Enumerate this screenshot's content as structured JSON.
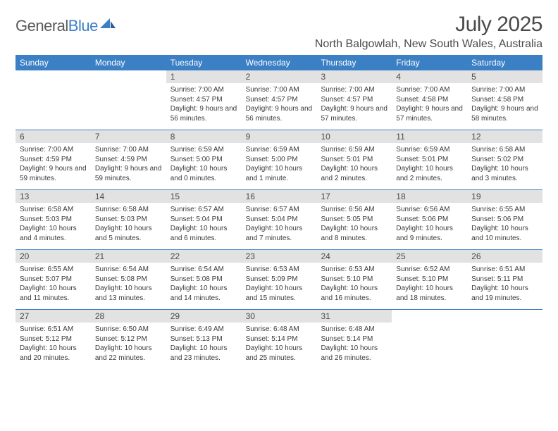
{
  "brand": {
    "name_part1": "General",
    "name_part2": "Blue",
    "colors": {
      "gray": "#5a5a5a",
      "blue": "#3b7fc4"
    }
  },
  "header": {
    "month_title": "July 2025",
    "location": "North Balgowlah, New South Wales, Australia"
  },
  "style": {
    "header_bg": "#3b7fc4",
    "daynum_bg": "#e2e2e2",
    "rule_color": "#3b7fc4",
    "page_bg": "#ffffff",
    "weekday_fontsize": 12,
    "daynum_fontsize": 12,
    "body_fontsize": 10,
    "title_fontsize": 30,
    "location_fontsize": 16
  },
  "weekdays": [
    "Sunday",
    "Monday",
    "Tuesday",
    "Wednesday",
    "Thursday",
    "Friday",
    "Saturday"
  ],
  "weeks": [
    [
      {
        "n": "",
        "sunrise": "",
        "sunset": "",
        "daylight": ""
      },
      {
        "n": "",
        "sunrise": "",
        "sunset": "",
        "daylight": ""
      },
      {
        "n": "1",
        "sunrise": "Sunrise: 7:00 AM",
        "sunset": "Sunset: 4:57 PM",
        "daylight": "Daylight: 9 hours and 56 minutes."
      },
      {
        "n": "2",
        "sunrise": "Sunrise: 7:00 AM",
        "sunset": "Sunset: 4:57 PM",
        "daylight": "Daylight: 9 hours and 56 minutes."
      },
      {
        "n": "3",
        "sunrise": "Sunrise: 7:00 AM",
        "sunset": "Sunset: 4:57 PM",
        "daylight": "Daylight: 9 hours and 57 minutes."
      },
      {
        "n": "4",
        "sunrise": "Sunrise: 7:00 AM",
        "sunset": "Sunset: 4:58 PM",
        "daylight": "Daylight: 9 hours and 57 minutes."
      },
      {
        "n": "5",
        "sunrise": "Sunrise: 7:00 AM",
        "sunset": "Sunset: 4:58 PM",
        "daylight": "Daylight: 9 hours and 58 minutes."
      }
    ],
    [
      {
        "n": "6",
        "sunrise": "Sunrise: 7:00 AM",
        "sunset": "Sunset: 4:59 PM",
        "daylight": "Daylight: 9 hours and 59 minutes."
      },
      {
        "n": "7",
        "sunrise": "Sunrise: 7:00 AM",
        "sunset": "Sunset: 4:59 PM",
        "daylight": "Daylight: 9 hours and 59 minutes."
      },
      {
        "n": "8",
        "sunrise": "Sunrise: 6:59 AM",
        "sunset": "Sunset: 5:00 PM",
        "daylight": "Daylight: 10 hours and 0 minutes."
      },
      {
        "n": "9",
        "sunrise": "Sunrise: 6:59 AM",
        "sunset": "Sunset: 5:00 PM",
        "daylight": "Daylight: 10 hours and 1 minute."
      },
      {
        "n": "10",
        "sunrise": "Sunrise: 6:59 AM",
        "sunset": "Sunset: 5:01 PM",
        "daylight": "Daylight: 10 hours and 2 minutes."
      },
      {
        "n": "11",
        "sunrise": "Sunrise: 6:59 AM",
        "sunset": "Sunset: 5:01 PM",
        "daylight": "Daylight: 10 hours and 2 minutes."
      },
      {
        "n": "12",
        "sunrise": "Sunrise: 6:58 AM",
        "sunset": "Sunset: 5:02 PM",
        "daylight": "Daylight: 10 hours and 3 minutes."
      }
    ],
    [
      {
        "n": "13",
        "sunrise": "Sunrise: 6:58 AM",
        "sunset": "Sunset: 5:03 PM",
        "daylight": "Daylight: 10 hours and 4 minutes."
      },
      {
        "n": "14",
        "sunrise": "Sunrise: 6:58 AM",
        "sunset": "Sunset: 5:03 PM",
        "daylight": "Daylight: 10 hours and 5 minutes."
      },
      {
        "n": "15",
        "sunrise": "Sunrise: 6:57 AM",
        "sunset": "Sunset: 5:04 PM",
        "daylight": "Daylight: 10 hours and 6 minutes."
      },
      {
        "n": "16",
        "sunrise": "Sunrise: 6:57 AM",
        "sunset": "Sunset: 5:04 PM",
        "daylight": "Daylight: 10 hours and 7 minutes."
      },
      {
        "n": "17",
        "sunrise": "Sunrise: 6:56 AM",
        "sunset": "Sunset: 5:05 PM",
        "daylight": "Daylight: 10 hours and 8 minutes."
      },
      {
        "n": "18",
        "sunrise": "Sunrise: 6:56 AM",
        "sunset": "Sunset: 5:06 PM",
        "daylight": "Daylight: 10 hours and 9 minutes."
      },
      {
        "n": "19",
        "sunrise": "Sunrise: 6:55 AM",
        "sunset": "Sunset: 5:06 PM",
        "daylight": "Daylight: 10 hours and 10 minutes."
      }
    ],
    [
      {
        "n": "20",
        "sunrise": "Sunrise: 6:55 AM",
        "sunset": "Sunset: 5:07 PM",
        "daylight": "Daylight: 10 hours and 11 minutes."
      },
      {
        "n": "21",
        "sunrise": "Sunrise: 6:54 AM",
        "sunset": "Sunset: 5:08 PM",
        "daylight": "Daylight: 10 hours and 13 minutes."
      },
      {
        "n": "22",
        "sunrise": "Sunrise: 6:54 AM",
        "sunset": "Sunset: 5:08 PM",
        "daylight": "Daylight: 10 hours and 14 minutes."
      },
      {
        "n": "23",
        "sunrise": "Sunrise: 6:53 AM",
        "sunset": "Sunset: 5:09 PM",
        "daylight": "Daylight: 10 hours and 15 minutes."
      },
      {
        "n": "24",
        "sunrise": "Sunrise: 6:53 AM",
        "sunset": "Sunset: 5:10 PM",
        "daylight": "Daylight: 10 hours and 16 minutes."
      },
      {
        "n": "25",
        "sunrise": "Sunrise: 6:52 AM",
        "sunset": "Sunset: 5:10 PM",
        "daylight": "Daylight: 10 hours and 18 minutes."
      },
      {
        "n": "26",
        "sunrise": "Sunrise: 6:51 AM",
        "sunset": "Sunset: 5:11 PM",
        "daylight": "Daylight: 10 hours and 19 minutes."
      }
    ],
    [
      {
        "n": "27",
        "sunrise": "Sunrise: 6:51 AM",
        "sunset": "Sunset: 5:12 PM",
        "daylight": "Daylight: 10 hours and 20 minutes."
      },
      {
        "n": "28",
        "sunrise": "Sunrise: 6:50 AM",
        "sunset": "Sunset: 5:12 PM",
        "daylight": "Daylight: 10 hours and 22 minutes."
      },
      {
        "n": "29",
        "sunrise": "Sunrise: 6:49 AM",
        "sunset": "Sunset: 5:13 PM",
        "daylight": "Daylight: 10 hours and 23 minutes."
      },
      {
        "n": "30",
        "sunrise": "Sunrise: 6:48 AM",
        "sunset": "Sunset: 5:14 PM",
        "daylight": "Daylight: 10 hours and 25 minutes."
      },
      {
        "n": "31",
        "sunrise": "Sunrise: 6:48 AM",
        "sunset": "Sunset: 5:14 PM",
        "daylight": "Daylight: 10 hours and 26 minutes."
      },
      {
        "n": "",
        "sunrise": "",
        "sunset": "",
        "daylight": ""
      },
      {
        "n": "",
        "sunrise": "",
        "sunset": "",
        "daylight": ""
      }
    ]
  ]
}
